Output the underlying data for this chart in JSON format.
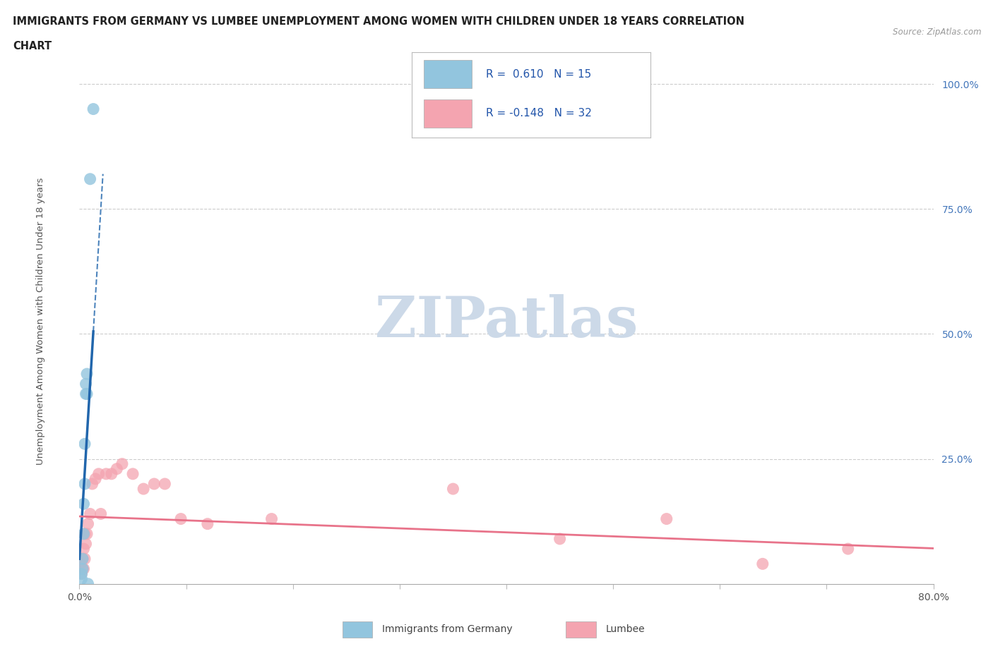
{
  "title_line1": "IMMIGRANTS FROM GERMANY VS LUMBEE UNEMPLOYMENT AMONG WOMEN WITH CHILDREN UNDER 18 YEARS CORRELATION",
  "title_line2": "CHART",
  "source": "Source: ZipAtlas.com",
  "ylabel": "Unemployment Among Women with Children Under 18 years",
  "xlim": [
    0.0,
    0.8
  ],
  "ylim": [
    0.0,
    1.05
  ],
  "xtick_positions": [
    0.0,
    0.1,
    0.2,
    0.3,
    0.4,
    0.5,
    0.6,
    0.7,
    0.8
  ],
  "xticklabels": [
    "0.0%",
    "",
    "",
    "",
    "",
    "",
    "",
    "",
    "80.0%"
  ],
  "ytick_positions": [
    0.25,
    0.5,
    0.75,
    1.0
  ],
  "ytick_labels": [
    "25.0%",
    "50.0%",
    "75.0%",
    "100.0%"
  ],
  "r_germany": 0.61,
  "n_germany": 15,
  "r_lumbee": -0.148,
  "n_lumbee": 32,
  "germany_color": "#92c5de",
  "lumbee_color": "#f4a4b0",
  "germany_line_color": "#2166ac",
  "lumbee_line_color": "#e8738a",
  "germany_scatter_x": [
    0.002,
    0.002,
    0.003,
    0.003,
    0.004,
    0.004,
    0.005,
    0.005,
    0.006,
    0.006,
    0.007,
    0.007,
    0.008,
    0.01,
    0.013
  ],
  "germany_scatter_y": [
    0.01,
    0.02,
    0.03,
    0.05,
    0.1,
    0.16,
    0.2,
    0.28,
    0.38,
    0.4,
    0.42,
    0.38,
    0.0,
    0.81,
    0.95
  ],
  "lumbee_scatter_x": [
    0.001,
    0.002,
    0.003,
    0.003,
    0.004,
    0.004,
    0.005,
    0.005,
    0.006,
    0.007,
    0.008,
    0.01,
    0.012,
    0.015,
    0.018,
    0.02,
    0.025,
    0.03,
    0.035,
    0.04,
    0.05,
    0.06,
    0.07,
    0.08,
    0.095,
    0.12,
    0.18,
    0.35,
    0.45,
    0.55,
    0.64,
    0.72
  ],
  "lumbee_scatter_y": [
    0.04,
    0.02,
    0.03,
    0.05,
    0.03,
    0.07,
    0.05,
    0.1,
    0.08,
    0.1,
    0.12,
    0.14,
    0.2,
    0.21,
    0.22,
    0.14,
    0.22,
    0.22,
    0.23,
    0.24,
    0.22,
    0.19,
    0.2,
    0.2,
    0.13,
    0.12,
    0.13,
    0.19,
    0.09,
    0.13,
    0.04,
    0.07
  ],
  "watermark_text": "ZIPatlas",
  "watermark_color": "#ccd9e8",
  "background_color": "#ffffff",
  "grid_color": "#cccccc",
  "grid_style": "--"
}
